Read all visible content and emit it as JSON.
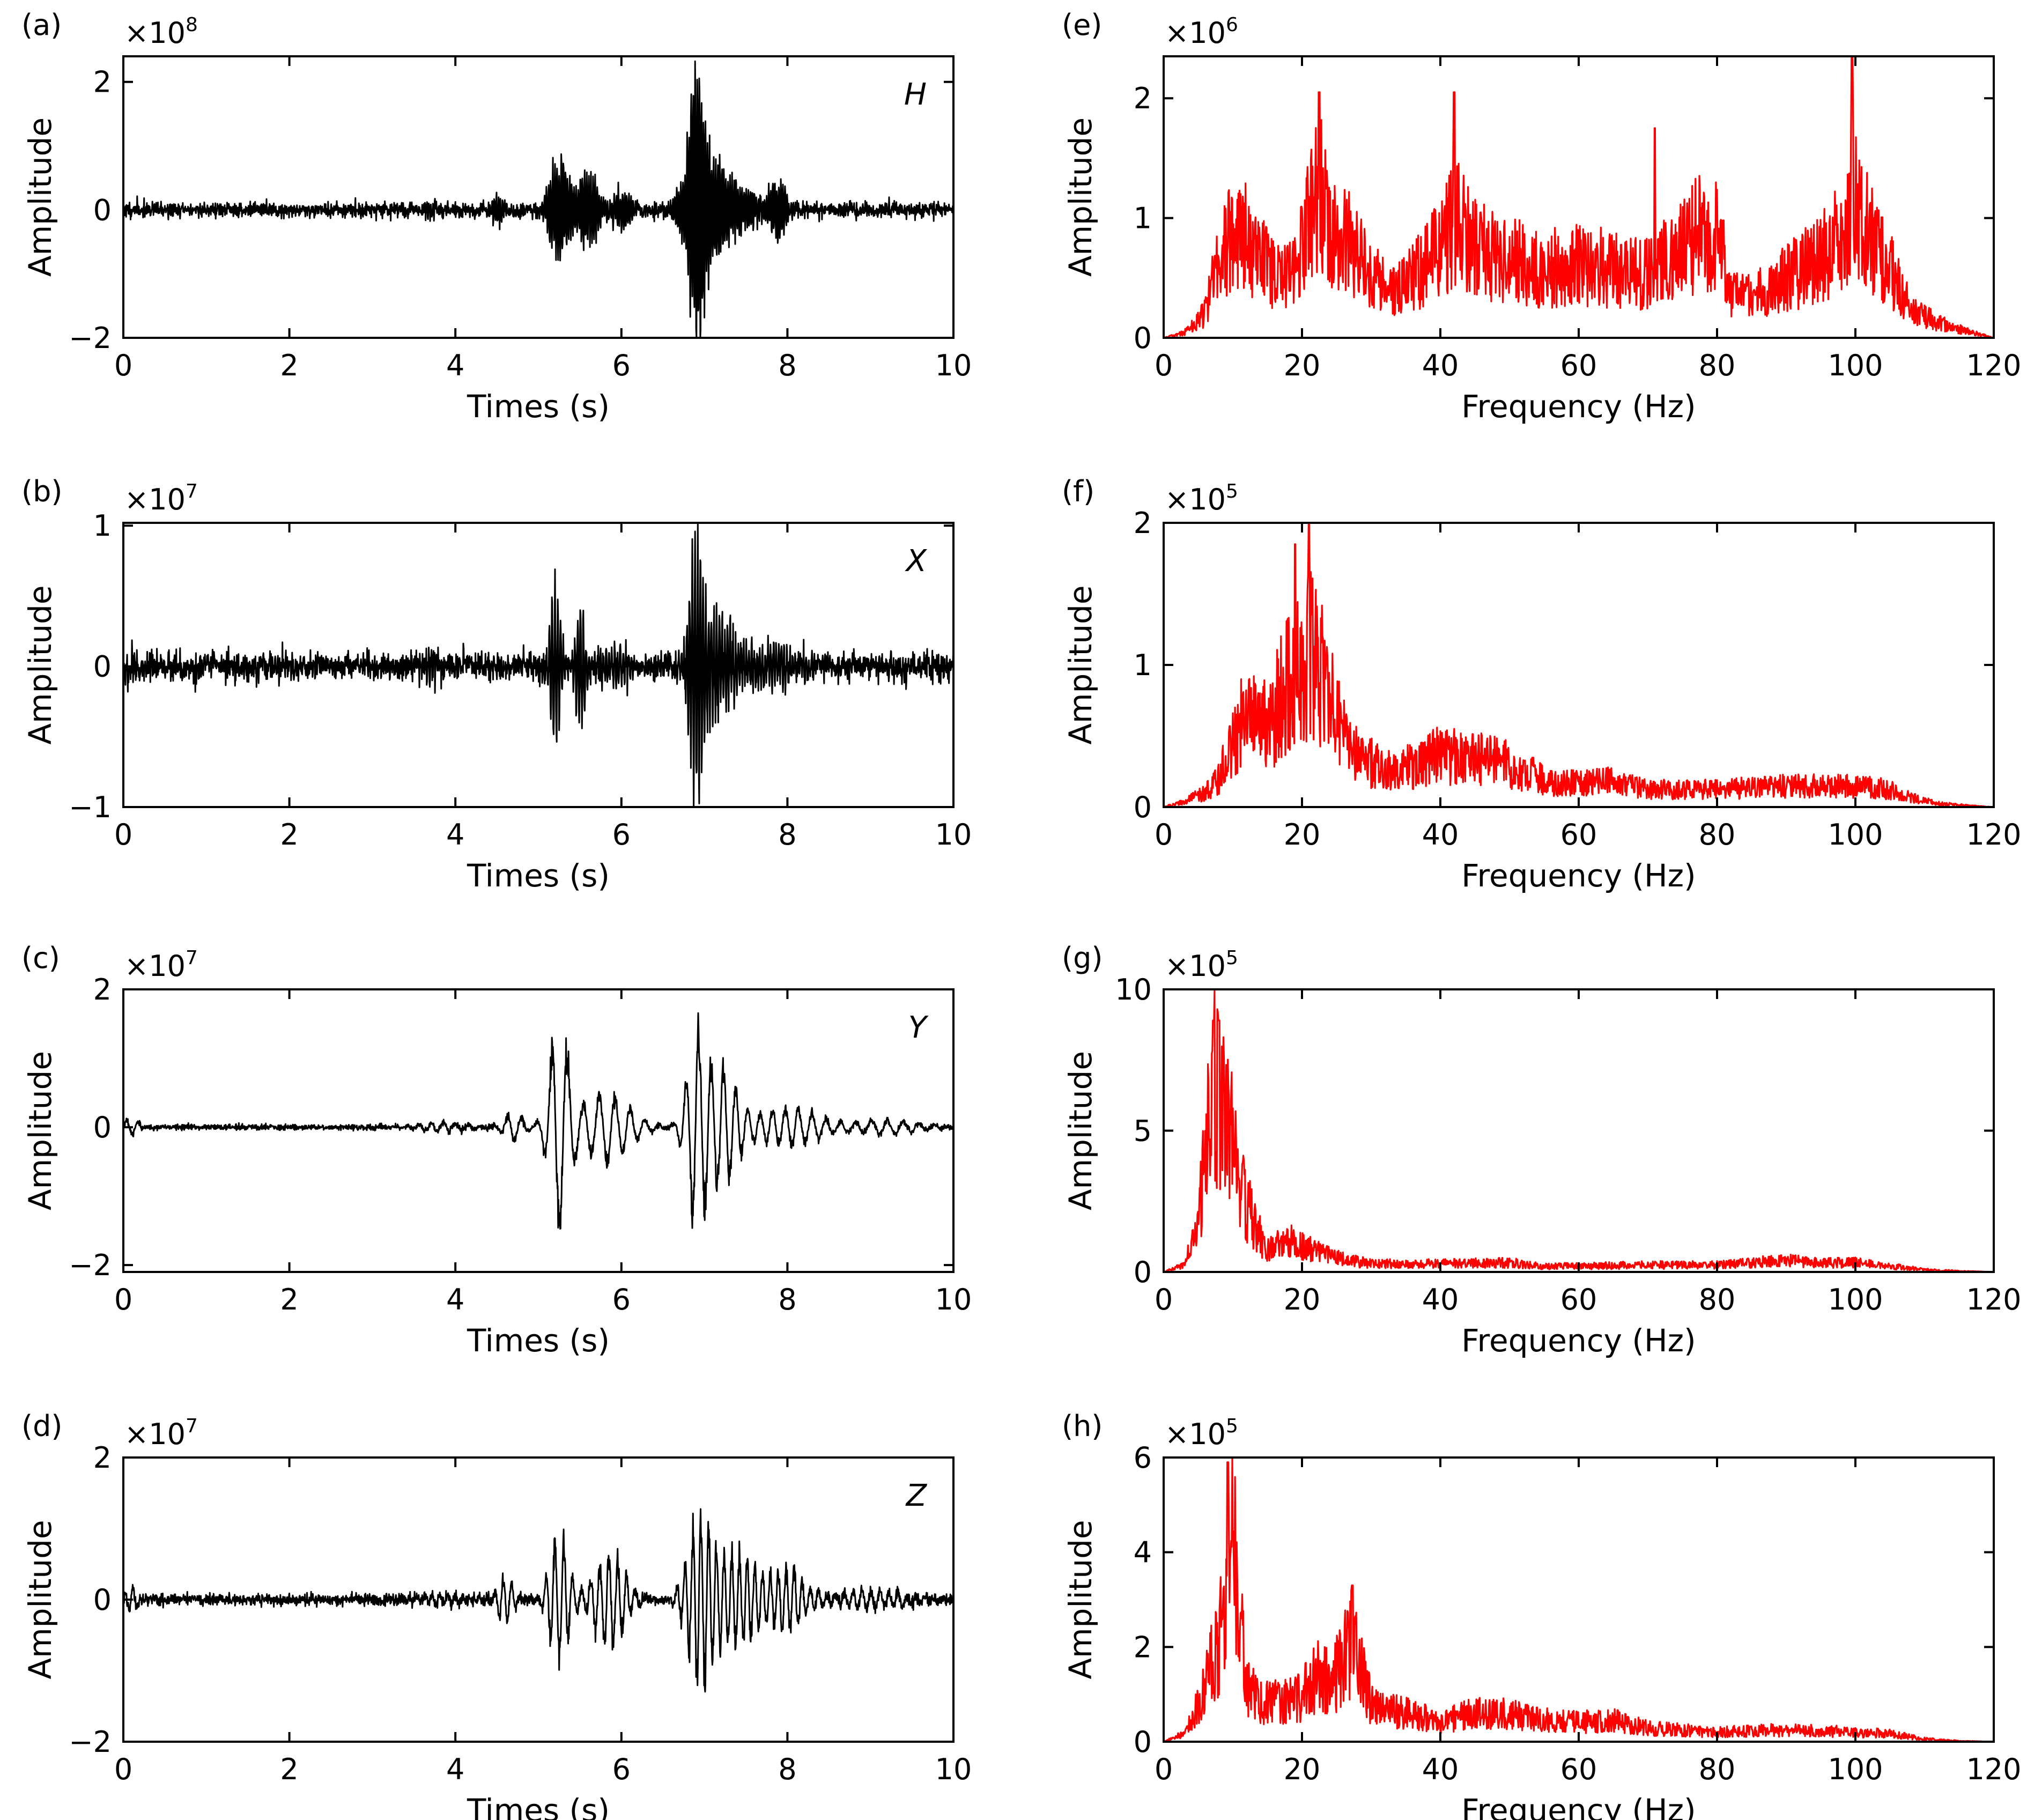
{
  "figure": {
    "panels": [
      {
        "id": "a",
        "panel_label": "(a)",
        "multiplier": {
          "base": "×10",
          "exp": "8"
        }
      },
      {
        "id": "b",
        "panel_label": "(b)",
        "multiplier": {
          "base": "×10",
          "exp": "7"
        }
      },
      {
        "id": "c",
        "panel_label": "(c)",
        "multiplier": {
          "base": "×10",
          "exp": "7"
        }
      },
      {
        "id": "d",
        "panel_label": "(d)",
        "multiplier": {
          "base": "×10",
          "exp": "7"
        }
      },
      {
        "id": "e",
        "panel_label": "(e)",
        "multiplier": {
          "base": "×10",
          "exp": "6"
        }
      },
      {
        "id": "f",
        "panel_label": "(f)",
        "multiplier": {
          "base": "×10",
          "exp": "5"
        }
      },
      {
        "id": "g",
        "panel_label": "(g)",
        "multiplier": {
          "base": "×10",
          "exp": "5"
        }
      },
      {
        "id": "h",
        "panel_label": "(h)",
        "multiplier": {
          "base": "×10",
          "exp": "5"
        }
      }
    ]
  },
  "chart_data": [
    {
      "id": "a",
      "type": "line",
      "title": "",
      "xlabel": "Times (s)",
      "ylabel": "Amplitude",
      "series_label": "H",
      "line_color": "#000000",
      "xlim": [
        0,
        10
      ],
      "ylim": [
        -2,
        2.4
      ],
      "xticks": [
        0,
        2,
        4,
        6,
        8,
        10
      ],
      "xtick_labels": [
        "0",
        "2",
        "4",
        "6",
        "8",
        "10"
      ],
      "yticks": [
        -2,
        0,
        2
      ],
      "ytick_labels": [
        "−2",
        "0",
        "2"
      ],
      "grid": false,
      "signal_shape": {
        "noise": 0.06,
        "base_freq": 40,
        "seed": 11,
        "bursts": [
          {
            "t": 3.7,
            "amp": 0.15,
            "w": 0.05
          },
          {
            "t": 4.5,
            "amp": 0.25,
            "w": 0.08
          },
          {
            "t": 5.25,
            "amp": 0.95,
            "w": 0.15
          },
          {
            "t": 5.6,
            "amp": 0.7,
            "w": 0.15
          },
          {
            "t": 6.0,
            "amp": 0.35,
            "w": 0.15
          },
          {
            "t": 6.9,
            "amp": 2.1,
            "w": 0.1
          },
          {
            "t": 7.0,
            "amp": 1.1,
            "w": 0.3
          },
          {
            "t": 7.5,
            "amp": 0.3,
            "w": 0.3
          },
          {
            "t": 7.9,
            "amp": 0.55,
            "w": 0.12
          }
        ]
      }
    },
    {
      "id": "b",
      "type": "line",
      "title": "",
      "xlabel": "Times (s)",
      "ylabel": "Amplitude",
      "series_label": "X",
      "line_color": "#000000",
      "xlim": [
        0,
        10
      ],
      "ylim": [
        -1,
        1.02
      ],
      "xticks": [
        0,
        2,
        4,
        6,
        8,
        10
      ],
      "xtick_labels": [
        "0",
        "2",
        "4",
        "6",
        "8",
        "10"
      ],
      "yticks": [
        -1,
        0,
        1
      ],
      "ytick_labels": [
        "−1",
        "0",
        "1"
      ],
      "grid": false,
      "signal_shape": {
        "noise": 0.05,
        "base_freq": 30,
        "seed": 23,
        "bursts": [
          {
            "t": 0.1,
            "amp": 0.15,
            "w": 0.06
          },
          {
            "t": 3.7,
            "amp": 0.12,
            "w": 0.06
          },
          {
            "t": 5.2,
            "amp": 0.75,
            "w": 0.08
          },
          {
            "t": 5.5,
            "amp": 0.5,
            "w": 0.08
          },
          {
            "t": 5.9,
            "amp": 0.12,
            "w": 0.3
          },
          {
            "t": 6.9,
            "amp": 0.9,
            "w": 0.1
          },
          {
            "t": 7.1,
            "amp": 0.45,
            "w": 0.3
          },
          {
            "t": 7.8,
            "amp": 0.15,
            "w": 0.4
          }
        ]
      }
    },
    {
      "id": "c",
      "type": "line",
      "title": "",
      "xlabel": "Times (s)",
      "ylabel": "Amplitude",
      "series_label": "Y",
      "line_color": "#000000",
      "xlim": [
        0,
        10
      ],
      "ylim": [
        -2.1,
        2
      ],
      "xticks": [
        0,
        2,
        4,
        6,
        8,
        10
      ],
      "xtick_labels": [
        "0",
        "2",
        "4",
        "6",
        "8",
        "10"
      ],
      "yticks": [
        -2,
        0,
        2
      ],
      "ytick_labels": [
        "−2",
        "0",
        "2"
      ],
      "grid": false,
      "signal_shape": {
        "noise": 0.02,
        "base_freq": 6,
        "seed": 37,
        "bursts": [
          {
            "t": 0.1,
            "amp": 0.15,
            "w": 0.1
          },
          {
            "t": 3.8,
            "amp": 0.08,
            "w": 0.4
          },
          {
            "t": 4.7,
            "amp": 0.25,
            "w": 0.15
          },
          {
            "t": 5.25,
            "amp": 1.8,
            "w": 0.15
          },
          {
            "t": 5.8,
            "amp": 0.6,
            "w": 0.4
          },
          {
            "t": 6.9,
            "amp": 1.5,
            "w": 0.15
          },
          {
            "t": 7.2,
            "amp": 1.0,
            "w": 0.25
          },
          {
            "t": 8.0,
            "amp": 0.35,
            "w": 0.5
          },
          {
            "t": 9.2,
            "amp": 0.12,
            "w": 0.5
          }
        ]
      }
    },
    {
      "id": "d",
      "type": "line",
      "title": "",
      "xlabel": "Times (s)",
      "ylabel": "Amplitude",
      "series_label": "Z",
      "line_color": "#000000",
      "xlim": [
        0,
        10
      ],
      "ylim": [
        -2,
        2
      ],
      "xticks": [
        0,
        2,
        4,
        6,
        8,
        10
      ],
      "xtick_labels": [
        "0",
        "2",
        "4",
        "6",
        "8",
        "10"
      ],
      "yticks": [
        -2,
        0,
        2
      ],
      "ytick_labels": [
        "−2",
        "0",
        "2"
      ],
      "grid": false,
      "signal_shape": {
        "noise": 0.04,
        "base_freq": 10,
        "seed": 53,
        "bursts": [
          {
            "t": 0.1,
            "amp": 0.25,
            "w": 0.08
          },
          {
            "t": 3.8,
            "amp": 0.08,
            "w": 0.4
          },
          {
            "t": 4.6,
            "amp": 0.4,
            "w": 0.12
          },
          {
            "t": 5.25,
            "amp": 1.1,
            "w": 0.15
          },
          {
            "t": 5.85,
            "amp": 0.8,
            "w": 0.25
          },
          {
            "t": 6.95,
            "amp": 1.4,
            "w": 0.2
          },
          {
            "t": 7.4,
            "amp": 0.8,
            "w": 0.3
          },
          {
            "t": 8.0,
            "amp": 0.55,
            "w": 0.25
          },
          {
            "t": 9.0,
            "amp": 0.15,
            "w": 0.6
          }
        ]
      }
    },
    {
      "id": "e",
      "type": "line",
      "title": "",
      "xlabel": "Frequency (Hz)",
      "ylabel": "Amplitude",
      "series_label": "",
      "line_color": "#ff0000",
      "xlim": [
        0,
        120
      ],
      "ylim": [
        0,
        2.35
      ],
      "xticks": [
        0,
        20,
        40,
        60,
        80,
        100,
        120
      ],
      "xtick_labels": [
        "0",
        "20",
        "40",
        "60",
        "80",
        "100",
        "120"
      ],
      "yticks": [
        0,
        1,
        2
      ],
      "ytick_labels": [
        "0",
        "1",
        "2"
      ],
      "grid": false,
      "spectrum_envelope": [
        [
          0,
          0
        ],
        [
          3,
          0.05
        ],
        [
          6,
          0.25
        ],
        [
          8,
          0.8
        ],
        [
          10,
          1.1
        ],
        [
          12,
          1.0
        ],
        [
          15,
          0.7
        ],
        [
          18,
          0.6
        ],
        [
          20,
          0.9
        ],
        [
          22,
          1.4
        ],
        [
          23,
          1.5
        ],
        [
          25,
          0.9
        ],
        [
          27,
          1.0
        ],
        [
          30,
          0.6
        ],
        [
          33,
          0.5
        ],
        [
          36,
          0.6
        ],
        [
          40,
          0.9
        ],
        [
          42,
          1.2
        ],
        [
          45,
          0.9
        ],
        [
          50,
          0.8
        ],
        [
          55,
          0.7
        ],
        [
          60,
          0.75
        ],
        [
          65,
          0.7
        ],
        [
          70,
          0.65
        ],
        [
          75,
          0.9
        ],
        [
          78,
          1.1
        ],
        [
          80,
          1.0
        ],
        [
          82,
          0.5
        ],
        [
          85,
          0.4
        ],
        [
          90,
          0.6
        ],
        [
          95,
          0.8
        ],
        [
          98,
          1.1
        ],
        [
          100,
          1.4
        ],
        [
          102,
          1.0
        ],
        [
          105,
          0.7
        ],
        [
          108,
          0.3
        ],
        [
          112,
          0.15
        ],
        [
          117,
          0.05
        ],
        [
          120,
          0
        ]
      ],
      "spikes": [
        {
          "f": 22.5,
          "v": 2.05
        },
        {
          "f": 42,
          "v": 2.05
        },
        {
          "f": 99.5,
          "v": 2.35
        },
        {
          "f": 71,
          "v": 1.75
        }
      ]
    },
    {
      "id": "f",
      "type": "line",
      "title": "",
      "xlabel": "Frequency (Hz)",
      "ylabel": "Amplitude",
      "series_label": "",
      "line_color": "#ff0000",
      "xlim": [
        0,
        120
      ],
      "ylim": [
        0,
        2
      ],
      "xticks": [
        0,
        20,
        40,
        60,
        80,
        100,
        120
      ],
      "xtick_labels": [
        "0",
        "20",
        "40",
        "60",
        "80",
        "100",
        "120"
      ],
      "yticks": [
        0,
        1,
        2
      ],
      "ytick_labels": [
        "0",
        "1",
        "2"
      ],
      "grid": false,
      "spectrum_envelope": [
        [
          0,
          0
        ],
        [
          3,
          0.05
        ],
        [
          6,
          0.12
        ],
        [
          8,
          0.25
        ],
        [
          10,
          0.55
        ],
        [
          12,
          0.8
        ],
        [
          14,
          0.7
        ],
        [
          16,
          0.8
        ],
        [
          18,
          1.1
        ],
        [
          20,
          1.3
        ],
        [
          22,
          1.3
        ],
        [
          24,
          0.9
        ],
        [
          26,
          0.6
        ],
        [
          28,
          0.45
        ],
        [
          32,
          0.3
        ],
        [
          36,
          0.35
        ],
        [
          40,
          0.45
        ],
        [
          44,
          0.4
        ],
        [
          48,
          0.4
        ],
        [
          52,
          0.3
        ],
        [
          56,
          0.22
        ],
        [
          60,
          0.2
        ],
        [
          65,
          0.22
        ],
        [
          70,
          0.15
        ],
        [
          80,
          0.15
        ],
        [
          90,
          0.18
        ],
        [
          100,
          0.18
        ],
        [
          105,
          0.15
        ],
        [
          108,
          0.08
        ],
        [
          112,
          0.03
        ],
        [
          117,
          0.01
        ],
        [
          120,
          0
        ]
      ],
      "spikes": [
        {
          "f": 21,
          "v": 2.0
        },
        {
          "f": 19,
          "v": 1.85
        }
      ]
    },
    {
      "id": "g",
      "type": "line",
      "title": "",
      "xlabel": "Frequency (Hz)",
      "ylabel": "Amplitude",
      "series_label": "",
      "line_color": "#ff0000",
      "xlim": [
        0,
        120
      ],
      "ylim": [
        0,
        10
      ],
      "xticks": [
        0,
        20,
        40,
        60,
        80,
        100,
        120
      ],
      "xtick_labels": [
        "0",
        "20",
        "40",
        "60",
        "80",
        "100",
        "120"
      ],
      "yticks": [
        0,
        5,
        10
      ],
      "ytick_labels": [
        "0",
        "5",
        "10"
      ],
      "grid": false,
      "spectrum_envelope": [
        [
          0,
          0
        ],
        [
          3,
          0.3
        ],
        [
          5,
          2.0
        ],
        [
          6,
          5.0
        ],
        [
          7,
          8.0
        ],
        [
          8,
          7.5
        ],
        [
          9,
          6.0
        ],
        [
          10,
          5.5
        ],
        [
          11,
          4.5
        ],
        [
          12,
          3.0
        ],
        [
          13,
          2.0
        ],
        [
          15,
          1.0
        ],
        [
          18,
          1.3
        ],
        [
          20,
          1.2
        ],
        [
          22,
          0.9
        ],
        [
          25,
          0.6
        ],
        [
          30,
          0.35
        ],
        [
          40,
          0.35
        ],
        [
          50,
          0.4
        ],
        [
          55,
          0.25
        ],
        [
          60,
          0.25
        ],
        [
          70,
          0.3
        ],
        [
          80,
          0.3
        ],
        [
          90,
          0.5
        ],
        [
          95,
          0.4
        ],
        [
          100,
          0.4
        ],
        [
          105,
          0.25
        ],
        [
          110,
          0.1
        ],
        [
          115,
          0.04
        ],
        [
          120,
          0
        ]
      ],
      "spikes": [
        {
          "f": 7.2,
          "v": 8.9
        },
        {
          "f": 8.0,
          "v": 8.9
        }
      ]
    },
    {
      "id": "h",
      "type": "line",
      "title": "",
      "xlabel": "Frequency (Hz)",
      "ylabel": "Amplitude",
      "series_label": "",
      "line_color": "#ff0000",
      "xlim": [
        0,
        120
      ],
      "ylim": [
        0,
        6
      ],
      "xticks": [
        0,
        20,
        40,
        60,
        80,
        100,
        120
      ],
      "xtick_labels": [
        "0",
        "20",
        "40",
        "60",
        "80",
        "100",
        "120"
      ],
      "yticks": [
        0,
        2,
        4,
        6
      ],
      "ytick_labels": [
        "0",
        "2",
        "4",
        "6"
      ],
      "grid": false,
      "spectrum_envelope": [
        [
          0,
          0
        ],
        [
          3,
          0.2
        ],
        [
          5,
          0.9
        ],
        [
          7,
          2.0
        ],
        [
          8,
          2.3
        ],
        [
          9,
          4.0
        ],
        [
          10,
          4.8
        ],
        [
          11,
          3.5
        ],
        [
          12,
          1.5
        ],
        [
          14,
          1.0
        ],
        [
          16,
          1.1
        ],
        [
          18,
          1.0
        ],
        [
          20,
          1.2
        ],
        [
          22,
          1.7
        ],
        [
          24,
          1.5
        ],
        [
          26,
          2.0
        ],
        [
          27,
          2.6
        ],
        [
          28,
          2.2
        ],
        [
          30,
          1.0
        ],
        [
          33,
          0.8
        ],
        [
          36,
          0.7
        ],
        [
          40,
          0.5
        ],
        [
          45,
          0.75
        ],
        [
          50,
          0.7
        ],
        [
          55,
          0.55
        ],
        [
          60,
          0.5
        ],
        [
          65,
          0.55
        ],
        [
          70,
          0.35
        ],
        [
          80,
          0.25
        ],
        [
          90,
          0.3
        ],
        [
          100,
          0.25
        ],
        [
          105,
          0.2
        ],
        [
          110,
          0.07
        ],
        [
          115,
          0.02
        ],
        [
          120,
          0
        ]
      ],
      "spikes": [
        {
          "f": 9.3,
          "v": 5.9
        },
        {
          "f": 27.3,
          "v": 3.3
        }
      ]
    }
  ]
}
